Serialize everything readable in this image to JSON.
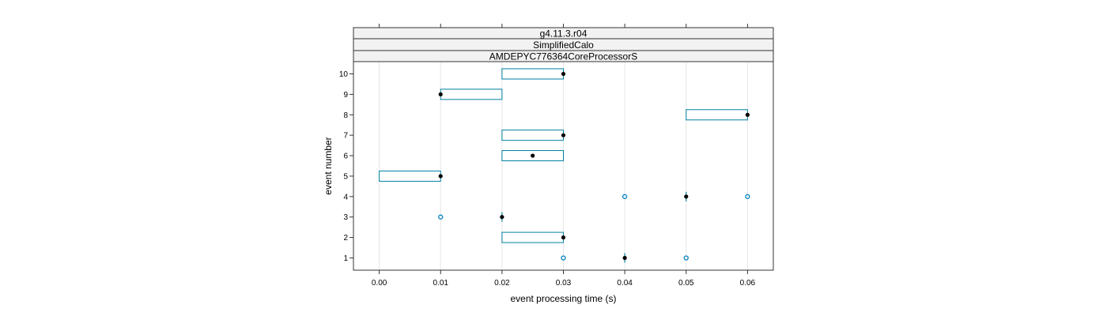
{
  "chart_data": {
    "type": "boxplot",
    "strips": [
      "g4.11.3.r04",
      "SimplifiedCalo",
      "AMDEPYC776364CoreProcessorS"
    ],
    "xlabel": "event processing time (s)",
    "ylabel": "event number",
    "xlim": [
      -0.0042,
      0.0642
    ],
    "ylim": [
      0.4,
      10.6
    ],
    "x_ticks": [
      0.0,
      0.01,
      0.02,
      0.03,
      0.04,
      0.05,
      0.06
    ],
    "x_tick_labels": [
      "0.00",
      "0.01",
      "0.02",
      "0.03",
      "0.04",
      "0.05",
      "0.06"
    ],
    "y_ticks": [
      1,
      2,
      3,
      4,
      5,
      6,
      7,
      8,
      9,
      10
    ],
    "y_tick_labels": [
      "1",
      "2",
      "3",
      "4",
      "5",
      "6",
      "7",
      "8",
      "9",
      "10"
    ],
    "grid": true,
    "colors": {
      "box": "#0080a0",
      "median": "#000000",
      "outlier": "#0080c0",
      "strip_bg": "#f2f2f2",
      "grid": "#e6e6e6"
    },
    "events": [
      {
        "event": 1,
        "box": null,
        "median": 0.04,
        "outliers": [
          0.03,
          0.05
        ]
      },
      {
        "event": 2,
        "box": [
          0.02,
          0.03
        ],
        "median": 0.03,
        "outliers": []
      },
      {
        "event": 3,
        "box": null,
        "median": 0.02,
        "outliers": [
          0.01
        ]
      },
      {
        "event": 4,
        "box": null,
        "median": 0.05,
        "outliers": [
          0.04,
          0.06
        ]
      },
      {
        "event": 5,
        "box": [
          0.0,
          0.01
        ],
        "median": 0.01,
        "outliers": []
      },
      {
        "event": 6,
        "box": [
          0.02,
          0.03
        ],
        "median": 0.025,
        "outliers": []
      },
      {
        "event": 7,
        "box": [
          0.02,
          0.03
        ],
        "median": 0.03,
        "outliers": []
      },
      {
        "event": 8,
        "box": [
          0.05,
          0.06
        ],
        "median": 0.06,
        "outliers": []
      },
      {
        "event": 9,
        "box": [
          0.01,
          0.02
        ],
        "median": 0.01,
        "outliers": []
      },
      {
        "event": 10,
        "box": [
          0.02,
          0.03
        ],
        "median": 0.03,
        "outliers": []
      }
    ]
  }
}
